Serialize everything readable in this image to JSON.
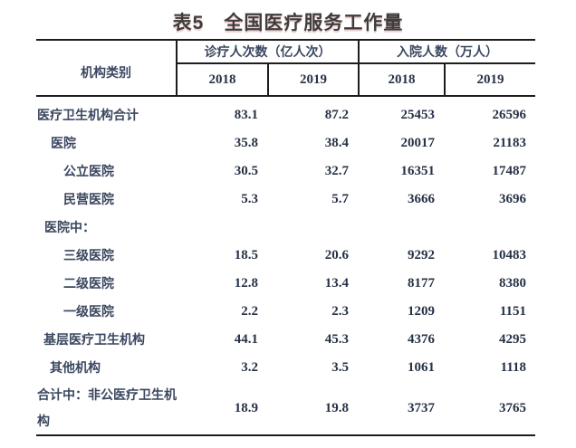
{
  "title": "表5　全国医疗服务工作量",
  "table": {
    "corner_label": "机构类别",
    "groups": [
      {
        "label": "诊疗人次数（亿人次）",
        "years": [
          "2018",
          "2019"
        ]
      },
      {
        "label": "入院人数（万人）",
        "years": [
          "2018",
          "2019"
        ]
      }
    ],
    "rows": [
      {
        "label": "医疗卫生机构合计",
        "indent": 1,
        "values": [
          "83.1",
          "87.2",
          "25453",
          "26596"
        ]
      },
      {
        "label": "医院",
        "indent": 16,
        "values": [
          "35.8",
          "38.4",
          "20017",
          "21183"
        ]
      },
      {
        "label": "公立医院",
        "indent": 30,
        "values": [
          "30.5",
          "32.7",
          "16351",
          "17487"
        ]
      },
      {
        "label": "民营医院",
        "indent": 30,
        "values": [
          "5.3",
          "5.7",
          "3666",
          "3696"
        ]
      },
      {
        "label": "医院中：",
        "indent": 9,
        "values": [
          "",
          "",
          "",
          ""
        ]
      },
      {
        "label": "三级医院",
        "indent": 30,
        "values": [
          "18.5",
          "20.6",
          "9292",
          "10483"
        ]
      },
      {
        "label": "二级医院",
        "indent": 30,
        "values": [
          "12.8",
          "13.4",
          "8177",
          "8380"
        ]
      },
      {
        "label": "一级医院",
        "indent": 30,
        "values": [
          "2.2",
          "2.3",
          "1209",
          "1151"
        ]
      },
      {
        "label": "基层医疗卫生机构",
        "indent": 8,
        "values": [
          "44.1",
          "45.3",
          "4376",
          "4295"
        ]
      },
      {
        "label": "其他机构",
        "indent": 15,
        "values": [
          "3.2",
          "3.5",
          "1061",
          "1118"
        ]
      },
      {
        "label": "合计中：非公医疗卫生机构",
        "indent": 1,
        "values": [
          "18.9",
          "19.8",
          "3737",
          "3765"
        ],
        "tall": true
      }
    ]
  },
  "colors": {
    "ink": "#2b3550",
    "label": "#3b4760",
    "number": "#273246",
    "border": "#1c1c1c",
    "title": "#3d3d3d",
    "background": "#ffffff"
  }
}
